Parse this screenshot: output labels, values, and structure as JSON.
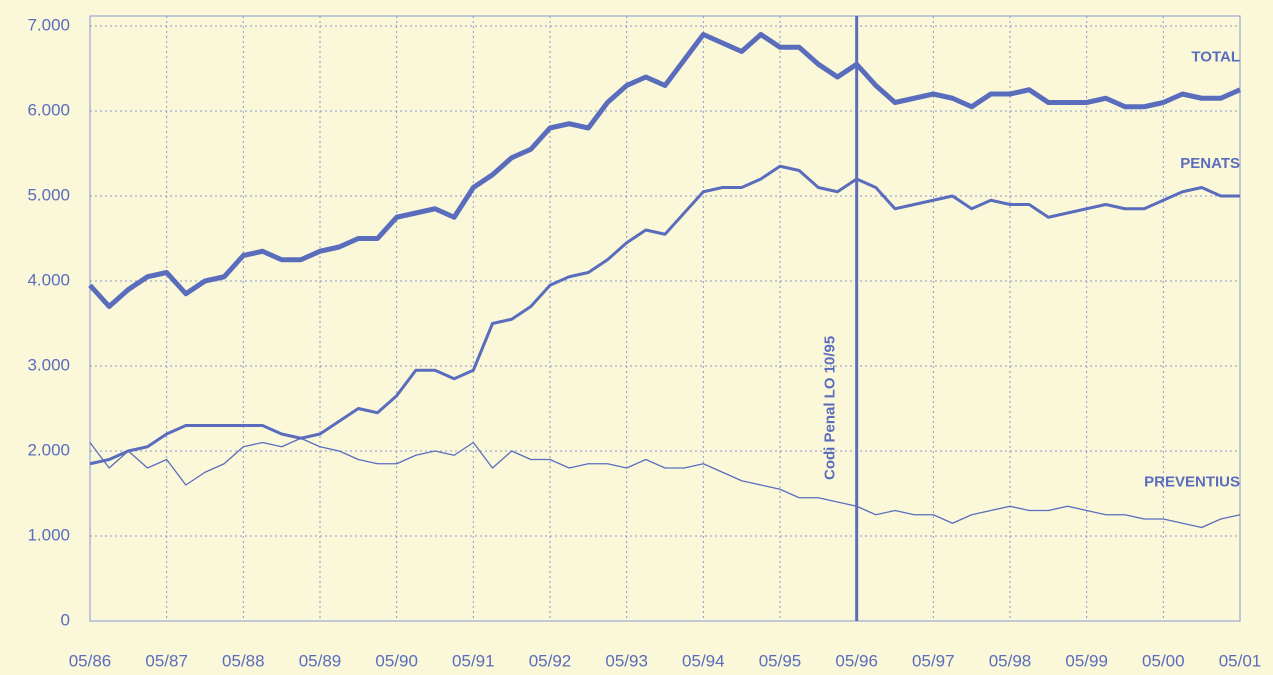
{
  "chart_data": {
    "type": "line",
    "categories": [
      "05/86",
      null,
      null,
      null,
      "05/87",
      null,
      null,
      null,
      "05/88",
      null,
      null,
      null,
      "05/89",
      null,
      null,
      null,
      "05/90",
      null,
      null,
      null,
      "05/91",
      null,
      null,
      null,
      "05/92",
      null,
      null,
      null,
      "05/93",
      null,
      null,
      null,
      "05/94",
      null,
      null,
      null,
      "05/95",
      null,
      null,
      null,
      "05/96",
      null,
      null,
      null,
      "05/97",
      null,
      null,
      null,
      "05/98",
      null,
      null,
      null,
      "05/99",
      null,
      null,
      null,
      "05/00",
      null,
      null,
      null,
      "05/01"
    ],
    "series": [
      {
        "name": "TOTAL",
        "color": "#5a6dbd",
        "line_width": 5,
        "values": [
          3950,
          3700,
          3900,
          4050,
          4100,
          3850,
          4000,
          4050,
          4300,
          4350,
          4250,
          4250,
          4350,
          4400,
          4500,
          4500,
          4750,
          4800,
          4850,
          4750,
          5100,
          5250,
          5450,
          5550,
          5800,
          5850,
          5800,
          6100,
          6300,
          6400,
          6300,
          6600,
          6900,
          6800,
          6700,
          6900,
          6750,
          6750,
          6550,
          6400,
          6550,
          6300,
          6100,
          6150,
          6200,
          6150,
          6050,
          6200,
          6200,
          6250,
          6100,
          6100,
          6100,
          6150,
          6050,
          6050,
          6100,
          6200,
          6150,
          6150,
          6250
        ]
      },
      {
        "name": "PENATS",
        "color": "#5a6dbd",
        "line_width": 3,
        "values": [
          1850,
          1900,
          2000,
          2050,
          2200,
          2300,
          2300,
          2300,
          2300,
          2300,
          2200,
          2150,
          2200,
          2350,
          2500,
          2450,
          2650,
          2950,
          2950,
          2850,
          2950,
          3500,
          3550,
          3700,
          3950,
          4050,
          4100,
          4250,
          4450,
          4600,
          4550,
          4800,
          5050,
          5100,
          5100,
          5200,
          5350,
          5300,
          5100,
          5050,
          5200,
          5100,
          4850,
          4900,
          4950,
          5000,
          4850,
          4950,
          4900,
          4900,
          4750,
          4800,
          4850,
          4900,
          4850,
          4850,
          4950,
          5050,
          5100,
          5000,
          5000
        ]
      },
      {
        "name": "PREVENTIUS",
        "color": "#5a6dbd",
        "line_width": 1.3,
        "values": [
          2100,
          1800,
          2000,
          1800,
          1900,
          1600,
          1750,
          1850,
          2050,
          2100,
          2050,
          2150,
          2050,
          2000,
          1900,
          1850,
          1850,
          1950,
          2000,
          1950,
          2100,
          1800,
          2000,
          1900,
          1900,
          1800,
          1850,
          1850,
          1800,
          1900,
          1800,
          1800,
          1850,
          1750,
          1650,
          1600,
          1550,
          1450,
          1450,
          1400,
          1350,
          1250,
          1300,
          1250,
          1250,
          1150,
          1250,
          1300,
          1350,
          1300,
          1300,
          1350,
          1300,
          1250,
          1250,
          1200,
          1200,
          1150,
          1100,
          1200,
          1250
        ]
      }
    ],
    "annotation": {
      "label": "Codi Penal LO 10/95",
      "x": "05/96"
    },
    "ylim": [
      0,
      7000
    ],
    "yticks": [
      0,
      {
        "value": 1000,
        "label": "1.000"
      },
      {
        "value": 2000,
        "label": "2.000"
      },
      {
        "value": 3000,
        "label": "3.000"
      },
      {
        "value": 4000,
        "label": "4.000"
      },
      {
        "value": 5000,
        "label": "5.000"
      },
      {
        "value": 6000,
        "label": "6.000"
      },
      {
        "value": 7000,
        "label": "7.000"
      }
    ],
    "grid": true
  }
}
